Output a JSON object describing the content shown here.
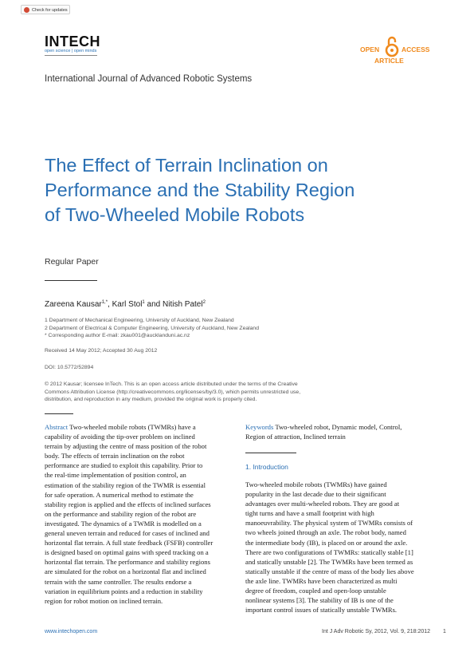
{
  "check_updates": "Check for updates",
  "logo": {
    "name": "INTECH",
    "tagline": "open science | open minds"
  },
  "open_access": {
    "left": "OPEN",
    "right": "ACCESS",
    "type": "ARTICLE"
  },
  "journal": "International Journal of Advanced Robotic Systems",
  "title_lines": [
    "The Effect of Terrain Inclination on",
    "Performance and the Stability Region",
    "of Two-Wheeled Mobile Robots"
  ],
  "paper_type": "Regular Paper",
  "authors": {
    "a1": "Zareena Kausar",
    "a1_sup": "1,*",
    "sep1": ", ",
    "a2": "Karl Stol",
    "a2_sup": "1",
    "sep2": " and ",
    "a3": "Nitish Patel",
    "a3_sup": "2"
  },
  "affiliations": [
    "1 Department of Mechanical Engineering, University of Auckland, New Zealand",
    "2 Department of Electrical & Computer Engineering, University of Auckland, New Zealand",
    "* Corresponding author E-mail: zkau001@aucklanduni.ac.nz"
  ],
  "received": "Received 14 May 2012; Accepted 30 Aug 2012",
  "doi": "DOI: 10.5772/52894",
  "license_lines": [
    "© 2012 Kausar; licensee InTech. This is an open access article distributed under the terms of the Creative",
    "Commons Attribution License (http://creativecommons.org/licenses/by/3.0), which permits unrestricted use,",
    "distribution, and reproduction in any medium, provided the original work is properly cited."
  ],
  "abstract": {
    "label": "Abstract",
    "lines": [
      "Two-wheeled mobile robots (TWMRs) have a",
      "capability of avoiding the tip-over problem on inclined",
      "terrain by adjusting the centre of mass position of the robot",
      "body. The effects of terrain inclination on the robot",
      "performance are studied to exploit this capability. Prior to",
      "the real-time implementation of position control, an",
      "estimation of the stability region of the TWMR is essential",
      "for safe operation. A numerical method to estimate the",
      "stability region is applied and the effects of inclined surfaces",
      "on the performance and stability region of the robot are",
      "investigated. The dynamics of a TWMR is modelled on a",
      "general uneven terrain and reduced for cases of inclined and",
      "horizontal flat terrain. A full state feedback (FSFB) controller",
      "is designed based on optimal gains with speed tracking on a",
      "horizontal flat terrain. The performance and stability regions",
      "are simulated for the robot on a horizontal flat and inclined",
      "terrain with the same controller. The results endorse a",
      "variation in equilibrium points and a reduction in stability",
      "region for robot motion on inclined terrain."
    ]
  },
  "keywords": {
    "label": "Keywords",
    "lines": [
      "Two-wheeled robot, Dynamic model, Control,",
      "Region of attraction, Inclined terrain"
    ]
  },
  "intro": {
    "heading": "1. Introduction",
    "lines": [
      "Two-wheeled mobile robots (TWMRs) have gained",
      "popularity in the last decade due to their significant",
      "advantages over multi-wheeled robots. They are good at",
      "tight turns and have a small footprint with high",
      "manoeuvrability. The physical system of TWMRs consists of",
      "two wheels joined through an axle. The robot body, named",
      "the intermediate body (IB), is placed on or around the axle.",
      "There are two configurations of TWMRs: statically stable [1]",
      "and statically unstable [2]. The TWMRs have been termed as",
      "statically unstable if the centre of mass of the body lies above",
      "the axle line. TWMRs have been characterized as multi",
      "degree of freedom, coupled and open-loop unstable",
      "nonlinear systems [3]. The stability of IB is one of the",
      "important control issues of statically unstable TWMRs."
    ]
  },
  "footer": {
    "url": "www.intechopen.com",
    "ref": "Int J Adv Robotic Sy, 2012, Vol. 9, 218:2012",
    "page": "1"
  }
}
